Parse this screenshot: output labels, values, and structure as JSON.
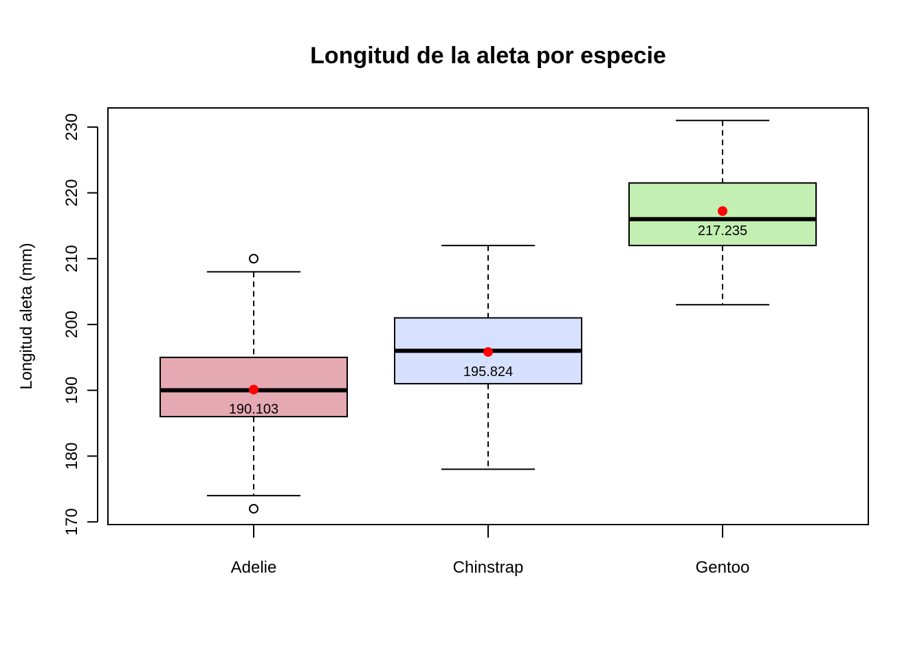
{
  "chart_data": {
    "type": "boxplot",
    "title": "Longitud de la aleta por especie",
    "xlabel": "",
    "ylabel": "Longitud aleta (mm)",
    "ylim": [
      170,
      232
    ],
    "y_ticks": [
      170,
      180,
      190,
      200,
      210,
      220,
      230
    ],
    "grid": false,
    "categories": [
      "Adelie",
      "Chinstrap",
      "Gentoo"
    ],
    "boxes": [
      {
        "category": "Adelie",
        "whisker_low": 174,
        "q1": 186,
        "median": 190,
        "q3": 195,
        "whisker_high": 208,
        "outliers": [
          172,
          210
        ],
        "mean": 190.103,
        "mean_label": "190.103",
        "fill": "#E4A9B3"
      },
      {
        "category": "Chinstrap",
        "whisker_low": 178,
        "q1": 191,
        "median": 196,
        "q3": 201,
        "whisker_high": 212,
        "outliers": [],
        "mean": 195.824,
        "mean_label": "195.824",
        "fill": "#D6E0FF"
      },
      {
        "category": "Gentoo",
        "whisker_low": 203,
        "q1": 212,
        "median": 216,
        "q3": 221.5,
        "whisker_high": 231,
        "outliers": [],
        "mean": 217.235,
        "mean_label": "217.235",
        "fill": "#C3EFB3"
      }
    ],
    "mean_marker_color": "#FF0000"
  }
}
